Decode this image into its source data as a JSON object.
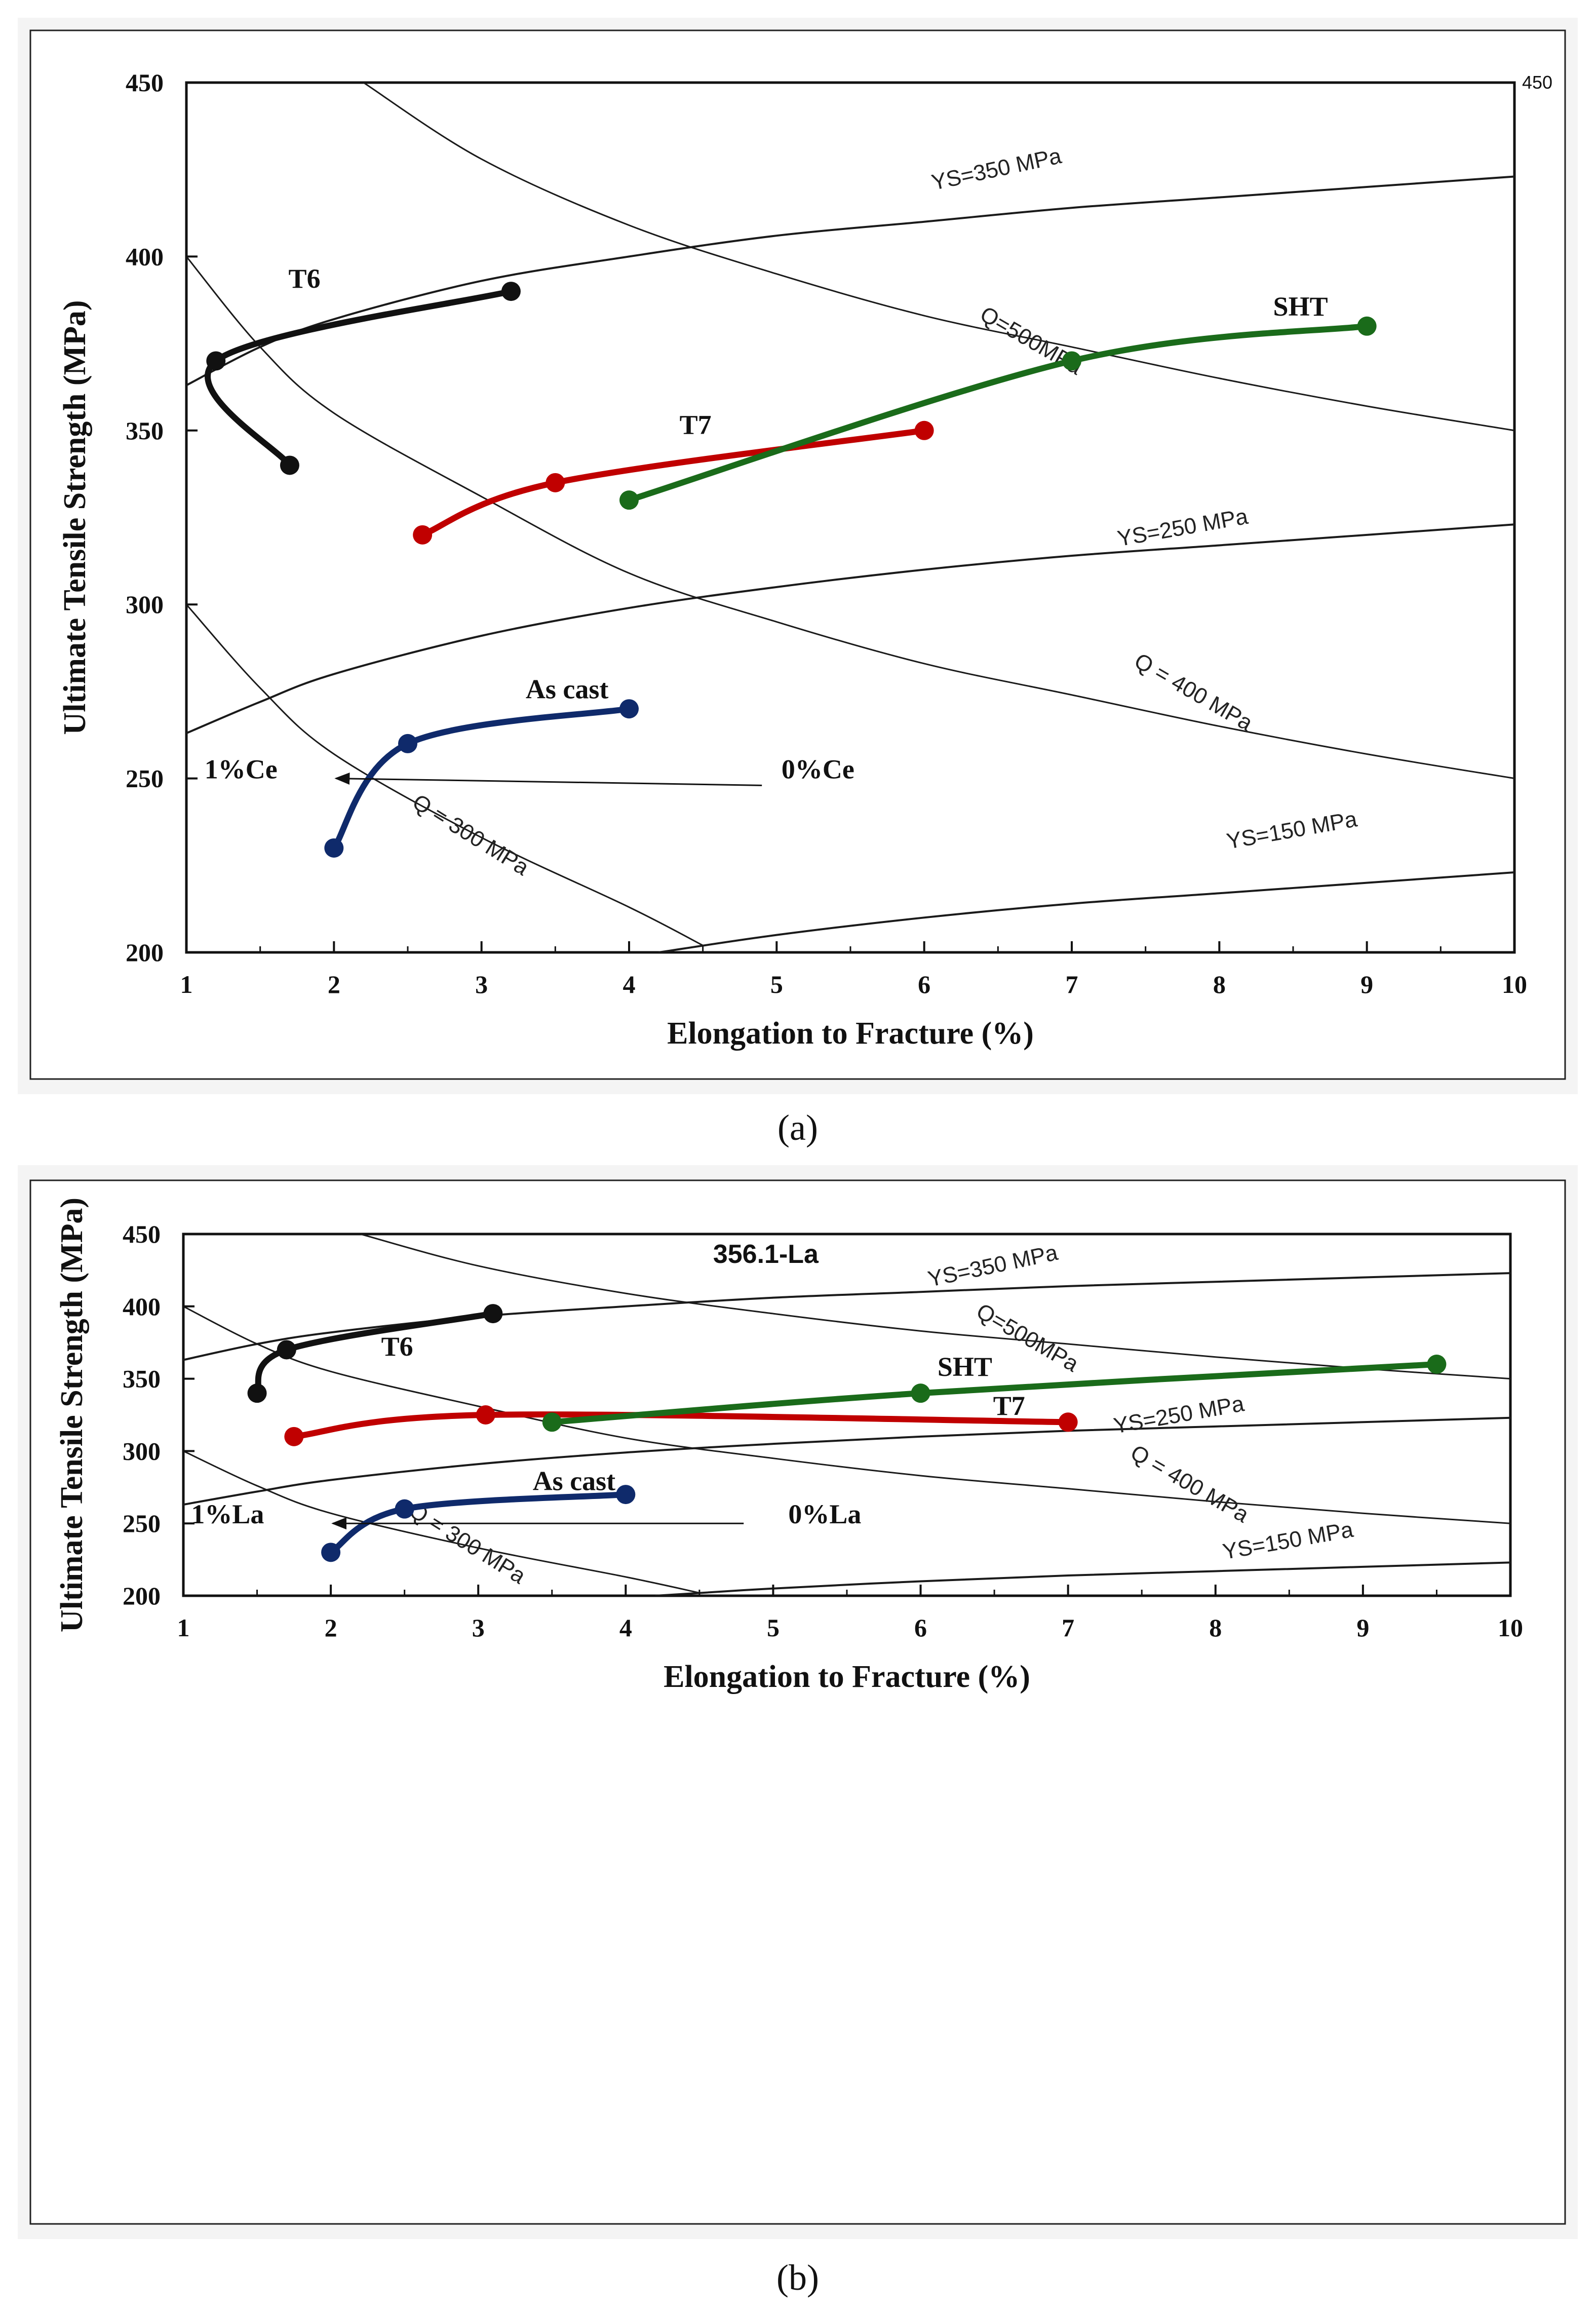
{
  "chart_data": [
    {
      "type": "line",
      "caption": "(a)",
      "title": "",
      "xlabel": "Elongation to Fracture (%)",
      "ylabel": "Ultimate Tensile Strength (MPa)",
      "xlim": [
        1,
        10
      ],
      "ylim": [
        200,
        450
      ],
      "xticks": [
        1,
        2,
        3,
        4,
        5,
        6,
        7,
        8,
        9,
        10
      ],
      "yticks": [
        200,
        250,
        300,
        350,
        400,
        450
      ],
      "right_axis_label": "450",
      "grid": false,
      "reference_curves": [
        {
          "name": "YS=350 MPa",
          "kind": "yield",
          "points": [
            [
              1,
              363
            ],
            [
              1.5,
              374
            ],
            [
              2,
              382
            ],
            [
              3,
              393
            ],
            [
              4,
              400
            ],
            [
              5,
              406
            ],
            [
              6,
              410
            ],
            [
              7,
              414
            ],
            [
              8,
              417
            ],
            [
              9,
              420
            ],
            [
              10,
              423
            ]
          ]
        },
        {
          "name": "YS=250 MPa",
          "kind": "yield",
          "points": [
            [
              1,
              263
            ],
            [
              1.5,
              272
            ],
            [
              2,
              280
            ],
            [
              3,
              291
            ],
            [
              4,
              299
            ],
            [
              5,
              305
            ],
            [
              6,
              310
            ],
            [
              7,
              314
            ],
            [
              8,
              317
            ],
            [
              9,
              320
            ],
            [
              10,
              323
            ]
          ]
        },
        {
          "name": "YS=150 MPa",
          "kind": "yield",
          "points": [
            [
              4.2,
              200
            ],
            [
              5,
              205
            ],
            [
              6,
              210
            ],
            [
              7,
              214
            ],
            [
              8,
              217
            ],
            [
              9,
              220
            ],
            [
              10,
              223
            ]
          ]
        },
        {
          "name": "Q=500MPa",
          "kind": "quality",
          "points": [
            [
              2.2,
              450
            ],
            [
              3,
              428
            ],
            [
              4,
              409
            ],
            [
              5,
              395
            ],
            [
              6,
              383
            ],
            [
              7,
              374
            ],
            [
              8,
              365
            ],
            [
              9,
              357
            ],
            [
              10,
              350
            ]
          ]
        },
        {
          "name": "Q = 400 MPa",
          "kind": "quality",
          "points": [
            [
              1,
              400
            ],
            [
              1.5,
              374
            ],
            [
              2,
              355
            ],
            [
              3,
              331
            ],
            [
              4,
              309
            ],
            [
              5,
              295
            ],
            [
              6,
              283
            ],
            [
              7,
              274
            ],
            [
              8,
              265
            ],
            [
              9,
              257
            ],
            [
              10,
              250
            ]
          ]
        },
        {
          "name": "Q = 300 MPa",
          "kind": "quality",
          "points": [
            [
              1,
              300
            ],
            [
              1.5,
              276
            ],
            [
              2,
              257
            ],
            [
              3,
              233
            ],
            [
              4,
              213
            ],
            [
              4.5,
              202
            ]
          ]
        }
      ],
      "series": [
        {
          "name": "T6",
          "color": "#111111",
          "points": [
            [
              1.7,
              340
            ],
            [
              1.2,
              370
            ],
            [
              3.2,
              390
            ]
          ]
        },
        {
          "name": "T7",
          "color": "#c00000",
          "points": [
            [
              2.6,
              320
            ],
            [
              3.5,
              335
            ],
            [
              6,
              350
            ]
          ]
        },
        {
          "name": "SHT",
          "color": "#1a6b1a",
          "points": [
            [
              4,
              330
            ],
            [
              7,
              370
            ],
            [
              9,
              380
            ]
          ]
        },
        {
          "name": "As cast",
          "color": "#0f2a6b",
          "points": [
            [
              2,
              230
            ],
            [
              2.5,
              260
            ],
            [
              4,
              270
            ]
          ]
        }
      ],
      "annotations": [
        {
          "text": "T6",
          "x": 1.8,
          "y": 391
        },
        {
          "text": "T7",
          "x": 4.45,
          "y": 349
        },
        {
          "text": "SHT",
          "x": 8.55,
          "y": 383
        },
        {
          "text": "As cast",
          "x": 3.58,
          "y": 273
        },
        {
          "text": "1%Ce",
          "x": 1.37,
          "y": 250
        },
        {
          "text": "0%Ce",
          "x": 5.28,
          "y": 250
        }
      ],
      "arrow": {
        "from": [
          4.9,
          248
        ],
        "to": [
          2.0,
          250
        ]
      }
    },
    {
      "type": "line",
      "caption": "(b)",
      "title": "356.1-La",
      "xlabel": "Elongation to Fracture (%)",
      "ylabel": "Ultimate Tensile Strength (MPa)",
      "xlim": [
        1,
        10
      ],
      "ylim": [
        200,
        450
      ],
      "xticks": [
        1,
        2,
        3,
        4,
        5,
        6,
        7,
        8,
        9,
        10
      ],
      "yticks": [
        200,
        250,
        300,
        350,
        400,
        450
      ],
      "grid": false,
      "reference_curves": [
        {
          "name": "YS=350 MPa",
          "kind": "yield",
          "points": [
            [
              1,
              363
            ],
            [
              1.5,
              374
            ],
            [
              2,
              382
            ],
            [
              3,
              393
            ],
            [
              4,
              400
            ],
            [
              5,
              406
            ],
            [
              6,
              410
            ],
            [
              7,
              414
            ],
            [
              8,
              417
            ],
            [
              9,
              420
            ],
            [
              10,
              423
            ]
          ]
        },
        {
          "name": "YS=250 MPa",
          "kind": "yield",
          "points": [
            [
              1,
              263
            ],
            [
              1.5,
              272
            ],
            [
              2,
              280
            ],
            [
              3,
              291
            ],
            [
              4,
              299
            ],
            [
              5,
              305
            ],
            [
              6,
              310
            ],
            [
              7,
              314
            ],
            [
              8,
              317
            ],
            [
              9,
              320
            ],
            [
              10,
              323
            ]
          ]
        },
        {
          "name": "YS=150 MPa",
          "kind": "yield",
          "points": [
            [
              4.2,
              200
            ],
            [
              5,
              205
            ],
            [
              6,
              210
            ],
            [
              7,
              214
            ],
            [
              8,
              217
            ],
            [
              9,
              220
            ],
            [
              10,
              223
            ]
          ]
        },
        {
          "name": "Q=500MPa",
          "kind": "quality",
          "points": [
            [
              2.2,
              450
            ],
            [
              3,
              428
            ],
            [
              4,
              409
            ],
            [
              5,
              395
            ],
            [
              6,
              383
            ],
            [
              7,
              374
            ],
            [
              8,
              365
            ],
            [
              9,
              357
            ],
            [
              10,
              350
            ]
          ]
        },
        {
          "name": "Q = 400 MPa",
          "kind": "quality",
          "points": [
            [
              1,
              400
            ],
            [
              1.5,
              374
            ],
            [
              2,
              355
            ],
            [
              3,
              331
            ],
            [
              4,
              309
            ],
            [
              5,
              295
            ],
            [
              6,
              283
            ],
            [
              7,
              274
            ],
            [
              8,
              265
            ],
            [
              9,
              257
            ],
            [
              10,
              250
            ]
          ]
        },
        {
          "name": "Q = 300 MPa",
          "kind": "quality",
          "points": [
            [
              1,
              300
            ],
            [
              1.5,
              276
            ],
            [
              2,
              257
            ],
            [
              3,
              233
            ],
            [
              4,
              213
            ],
            [
              4.5,
              202
            ]
          ]
        }
      ],
      "series": [
        {
          "name": "T6",
          "color": "#111111",
          "points": [
            [
              1.5,
              340
            ],
            [
              1.7,
              370
            ],
            [
              3.1,
              395
            ]
          ]
        },
        {
          "name": "T7",
          "color": "#c00000",
          "points": [
            [
              1.75,
              310
            ],
            [
              3.05,
              325
            ],
            [
              7,
              320
            ]
          ]
        },
        {
          "name": "SHT",
          "color": "#1a6b1a",
          "points": [
            [
              3.5,
              320
            ],
            [
              6,
              340
            ],
            [
              9.5,
              360
            ]
          ]
        },
        {
          "name": "As cast",
          "color": "#0f2a6b",
          "points": [
            [
              2,
              230
            ],
            [
              2.5,
              260
            ],
            [
              4,
              270
            ]
          ]
        }
      ],
      "annotations": [
        {
          "text": "T6",
          "x": 2.45,
          "y": 366
        },
        {
          "text": "SHT",
          "x": 6.3,
          "y": 352
        },
        {
          "text": "T7",
          "x": 6.6,
          "y": 325
        },
        {
          "text": "As cast",
          "x": 3.65,
          "y": 273
        },
        {
          "text": "1%La",
          "x": 1.3,
          "y": 250
        },
        {
          "text": "0%La",
          "x": 5.35,
          "y": 250
        }
      ],
      "arrow": {
        "from": [
          4.8,
          250
        ],
        "to": [
          2.0,
          250
        ]
      }
    }
  ]
}
